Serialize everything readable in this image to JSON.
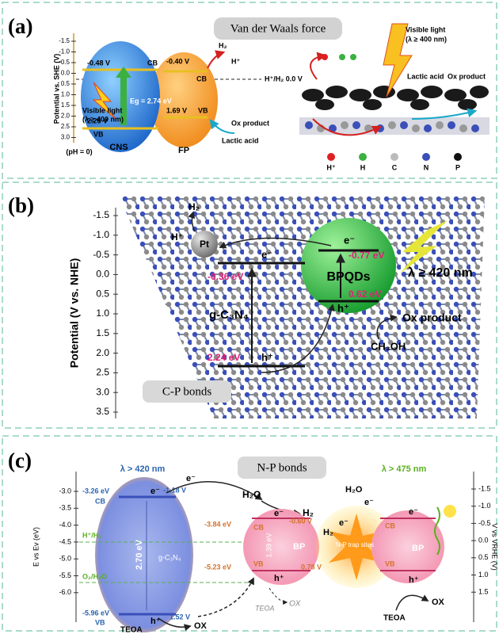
{
  "panel_a": {
    "label": "(a)",
    "banner": "Van der Waals force",
    "axis_title": "Potential vs. SHE (V)",
    "axis_ticks": [
      "-1.5",
      "-1.0",
      "-0.5",
      "0.0",
      "0.5",
      "1.0",
      "1.5",
      "2.0",
      "2.5",
      "3.0"
    ],
    "ph_note": "(pH = 0)",
    "cns": {
      "cb_value": "-0.48 V",
      "cb": "CB",
      "gap": "Eg = 2.74 eV",
      "vb_value": "2.26 V",
      "vb": "VB",
      "name": "CNS"
    },
    "fp": {
      "cb_value": "-0.40 V",
      "cb": "CB",
      "vb_value": "1.69 V",
      "vb": "VB",
      "name": "FP"
    },
    "light": [
      "Visible light",
      "(λ ≥ 400 nm)"
    ],
    "h2": "H₂",
    "hplus": "H⁺",
    "ox_product": "Ox product",
    "lactic_acid": "Lactic acid",
    "reference": "H⁺/H₂ 0.0 V",
    "right_light": [
      "Visible light",
      "(λ ≥ 400 nm)"
    ],
    "right_lactic": "Lactic acid",
    "right_ox": "Ox product",
    "legend": [
      "H⁺",
      "H",
      "C",
      "N",
      "P"
    ]
  },
  "panel_b": {
    "label": "(b)",
    "axis_title": "Potential (V vs. NHE)",
    "axis_ticks": [
      "-1.5",
      "-1.0",
      "-0.5",
      "0.0",
      "0.5",
      "1.0",
      "1.5",
      "2.0",
      "2.5",
      "3.0",
      "3.5"
    ],
    "h2": "H₂",
    "hplus": "H⁺",
    "pt": "Pt",
    "gcn_e": "e⁻",
    "gcn_cb": "-0.36 eV",
    "gcn_name": "g-C₃N₄",
    "gcn_vb": "2.24 eV",
    "gcn_h": "h⁺",
    "bp_e": "e⁻",
    "bp_cb": "-0.77 eV",
    "bp_name": "BPQDs",
    "bp_vb": "0.62 eV",
    "bp_h": "h⁺",
    "light": "λ ≥ 420 nm",
    "ox_product": "Ox product",
    "methanol": "CH₃OH",
    "bond": "C-P bonds"
  },
  "panel_c": {
    "label": "(c)",
    "left_axis_title": "E vs Ev (eV)",
    "left_ticks": [
      "-3.0",
      "-3.5",
      "-4.0",
      "-4.5",
      "-5.0",
      "-5.5",
      "-6.0"
    ],
    "right_axis_title": "V vs VRHE (V)",
    "right_ticks": [
      "-1.5",
      "-1.0",
      "-0.5",
      "0.0",
      "0.5",
      "1.0",
      "1.5"
    ],
    "light_left": "λ > 420 nm",
    "bond": "N-P bonds",
    "light_right": "λ > 475 nm",
    "gcn": {
      "cb_ev": "-3.26 eV",
      "cb": "CB",
      "cb_v": "-1.18 V",
      "gap": "2.70 eV",
      "name": "g-C₃N₄",
      "vb_ev": "-5.96 eV",
      "vb": "VB",
      "vb_v": "1.52 V",
      "e": "e⁻",
      "h": "h⁺"
    },
    "hh2": "H⁺/H₂",
    "o2h2o": "O₂/H₂O",
    "teoa_left": "TEOA",
    "ox_left": "OX",
    "water": "H₂O",
    "h2": "H₂",
    "e_flow": "e⁻",
    "bp": {
      "cb_v": "-0.60 V",
      "cb_ev": "-3.84 eV",
      "cb": "CB",
      "gap": "1.39 eV",
      "name": "BP",
      "vb": "VB",
      "vb_ev": "-5.23 eV",
      "vb_v": "0.78 V",
      "e": "e⁻",
      "h": "h⁺"
    },
    "ox_mid": "OX",
    "teoa_mid": "TEOA",
    "right": {
      "water": "H₂O",
      "h2": "H₂",
      "e1": "e⁻",
      "e2": "e⁻",
      "trap": "N-P trap sites",
      "cb": "CB",
      "name": "BP",
      "vb": "VB",
      "e": "e⁻",
      "h": "h⁺",
      "ox": "OX",
      "teoa": "TEOA"
    }
  }
}
